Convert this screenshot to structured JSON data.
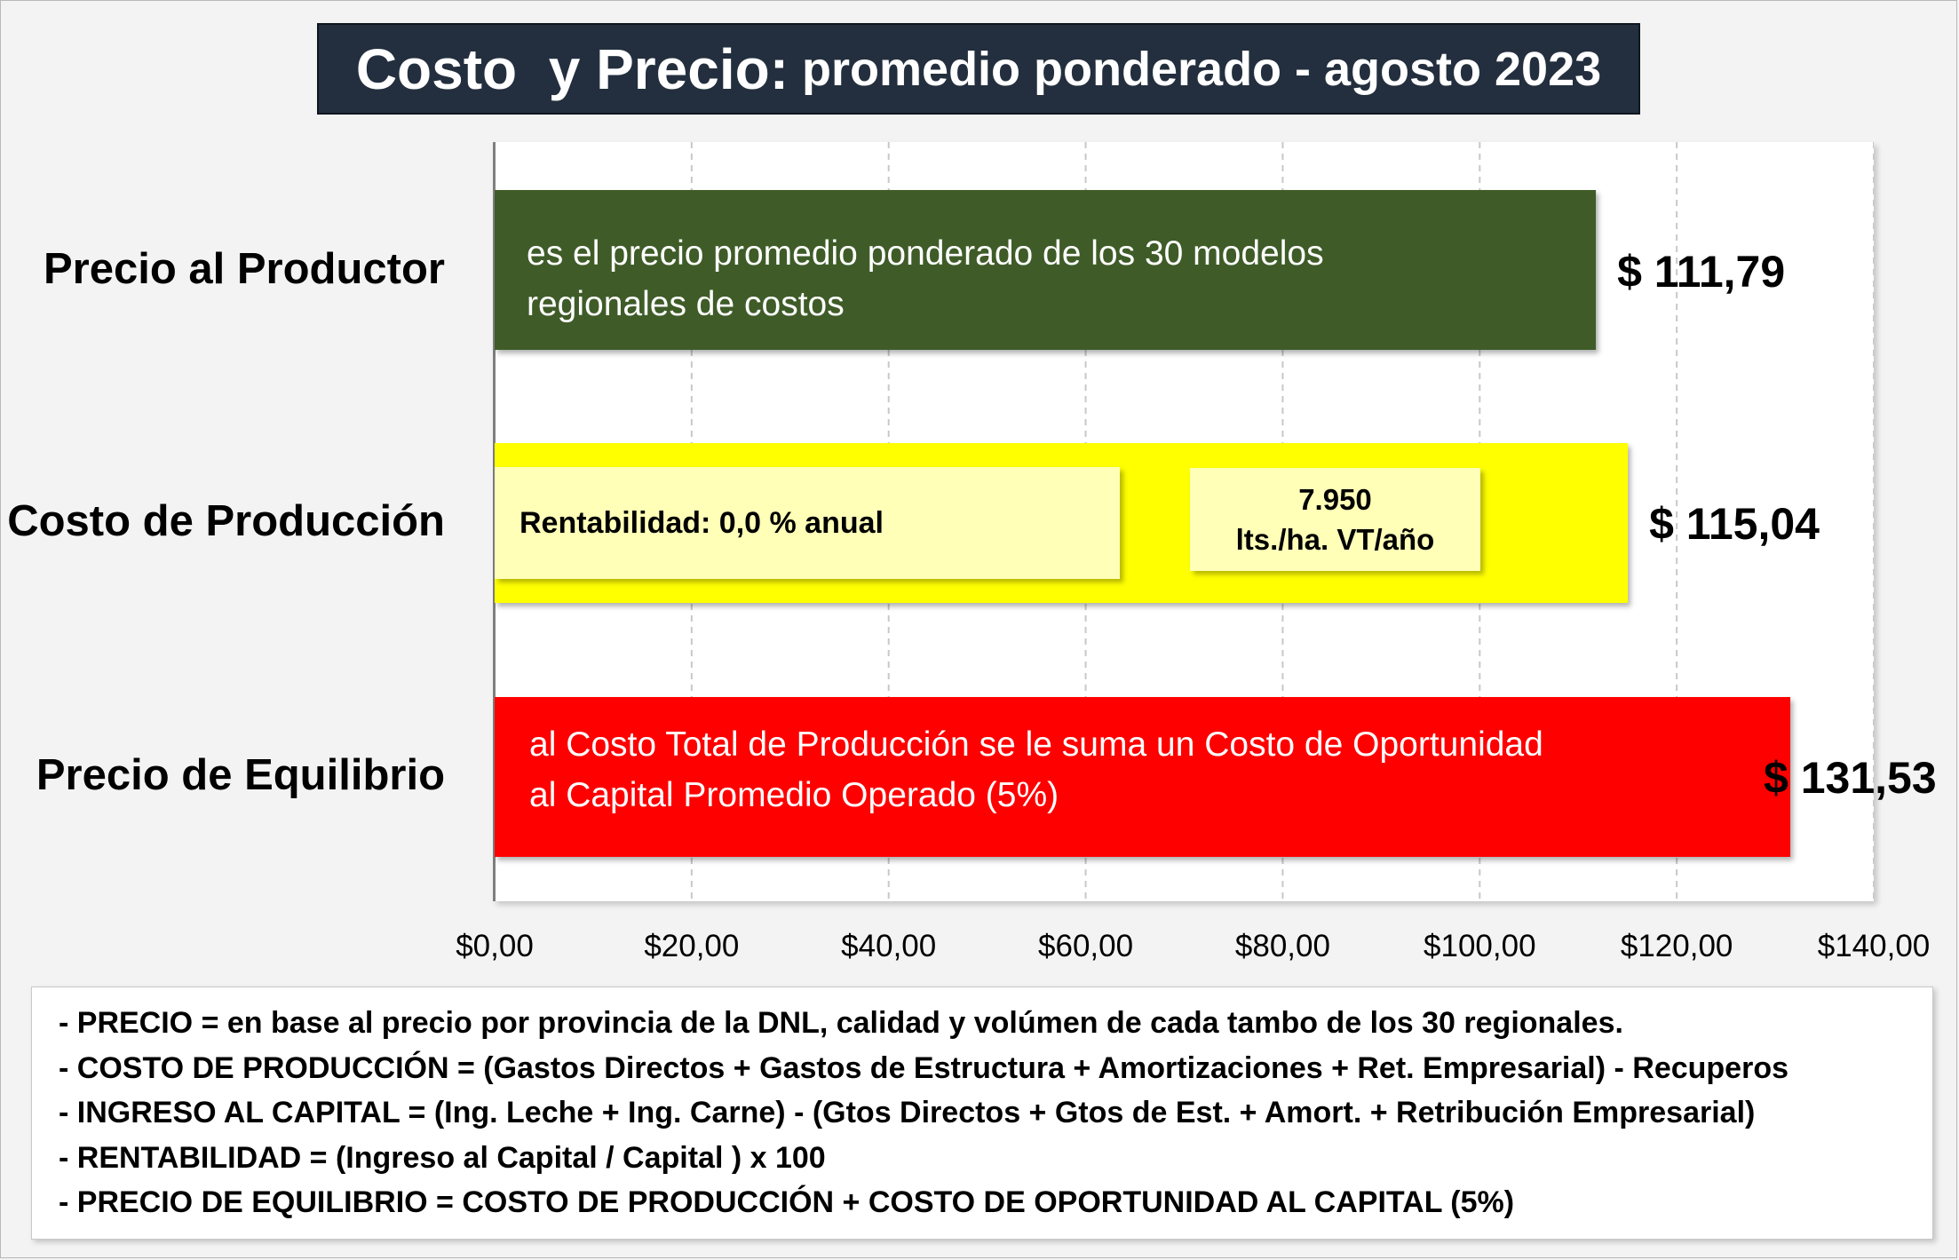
{
  "title_part1": "Costo  y Precio:",
  "title_part2": " promedio ponderado - agosto 2023",
  "chart_data": {
    "type": "bar",
    "orientation": "horizontal",
    "categories": [
      "Precio al Productor",
      "Costo de Producción",
      "Precio de Equilibrio"
    ],
    "values": [
      111.79,
      115.04,
      131.53
    ],
    "value_labels": [
      "$ 111,79",
      "$ 115,04",
      "$ 131,53"
    ],
    "bar_colors": [
      "#3f5c28",
      "#ffff00",
      "#ff0000"
    ],
    "xlim": [
      0,
      140
    ],
    "xticks": [
      0,
      20,
      40,
      60,
      80,
      100,
      120,
      140
    ],
    "xtick_labels": [
      "$0,00",
      "$20,00",
      "$40,00",
      "$60,00",
      "$80,00",
      "$100,00",
      "$120,00",
      "$140,00"
    ],
    "grid": "vertical dashed",
    "annotations": {
      "precio_productor": [
        "es el precio promedio ponderado de los 30 modelos",
        "regionales de costos"
      ],
      "rentabilidad": "Rentabilidad: 0,0 % anual",
      "volumen_value": "7.950",
      "volumen_unit": "lts./ha. VT/año",
      "precio_equilibrio": [
        "al Costo Total de Producción se le suma un Costo de Oportunidad",
        "al Capital Promedio Operado (5%)"
      ]
    }
  },
  "notes": [
    "- PRECIO = en base al precio por provincia de la DNL, calidad y volúmen de cada tambo de los 30 regionales.",
    "- COSTO DE PRODUCCIÓN = (Gastos Directos + Gastos de Estructura + Amortizaciones + Ret. Empresarial) - Recuperos",
    "- INGRESO AL CAPITAL = (Ing. Leche + Ing. Carne) - (Gtos Directos + Gtos de Est. + Amort. + Retribución Empresarial)",
    "- RENTABILIDAD = (Ingreso al Capital / Capital ) x 100",
    "- PRECIO DE EQUILIBRIO = COSTO DE PRODUCCIÓN + COSTO DE OPORTUNIDAD AL CAPITAL (5%)"
  ]
}
